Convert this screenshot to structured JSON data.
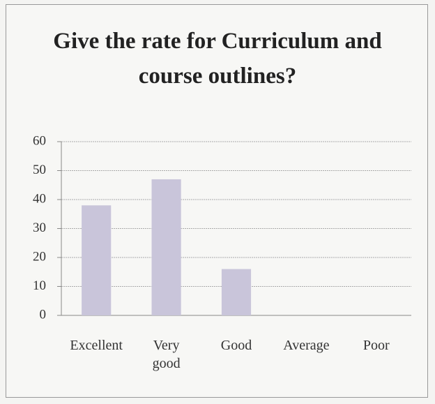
{
  "chart_data": {
    "type": "bar",
    "title": "Give the rate for Curriculum and course outlines?",
    "categories": [
      "Excellent",
      "Very good",
      "Good",
      "Average",
      "Poor"
    ],
    "values": [
      38,
      47,
      16,
      0,
      0
    ],
    "color": "#c9c5da",
    "ylim": [
      0,
      60
    ],
    "yticks": [
      0,
      10,
      20,
      30,
      40,
      50,
      60
    ],
    "grid": true
  }
}
